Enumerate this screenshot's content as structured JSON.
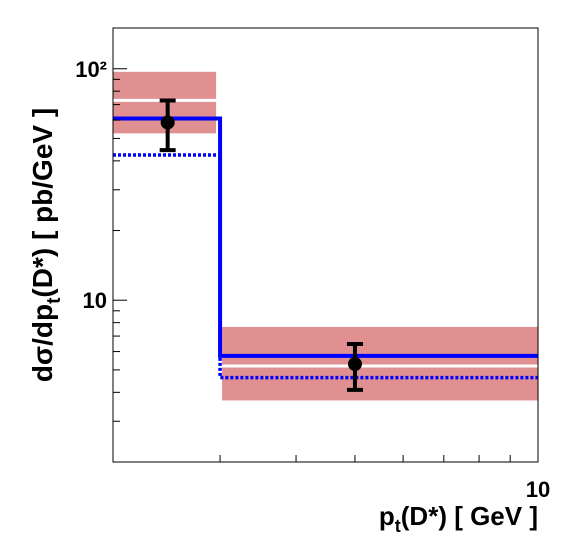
{
  "chart_data": {
    "type": "histogram",
    "x_label": [
      "p",
      "t",
      "(D*) [ GeV ]"
    ],
    "y_label": [
      "dσ/dp",
      "t",
      "(D*) [ pb/GeV ]"
    ],
    "log_x": true,
    "log_y": true,
    "xlim": [
      2,
      10
    ],
    "ylim": [
      2,
      150
    ],
    "xticks": [
      10
    ],
    "xminor": [
      3,
      4,
      5,
      6,
      7,
      8,
      9
    ],
    "yticks": [
      10,
      {
        "value": 100,
        "label": "10²"
      }
    ],
    "yminor": [
      2,
      3,
      4,
      5,
      6,
      7,
      8,
      9,
      20,
      30,
      40,
      50,
      60,
      70,
      80,
      90
    ],
    "bins": [
      2,
      3,
      10
    ],
    "series": [
      {
        "name": "theory band",
        "color": "#e09090",
        "lower": [
          52.6,
          3.69
        ],
        "upper": [
          97,
          7.67
        ],
        "center": [
          73,
          5.2
        ]
      },
      {
        "name": "prediction",
        "color": "#0000ff",
        "values": [
          61,
          5.75
        ]
      },
      {
        "name": "prediction dotted",
        "color": "#0000ff",
        "values": [
          42.4,
          4.63
        ]
      },
      {
        "name": "data",
        "color": "#000000",
        "x": [
          2.46,
          5
        ],
        "values": [
          58.6,
          5.3
        ],
        "upper": [
          72.9,
          6.47
        ],
        "lower": [
          44.5,
          4.1
        ]
      }
    ]
  }
}
